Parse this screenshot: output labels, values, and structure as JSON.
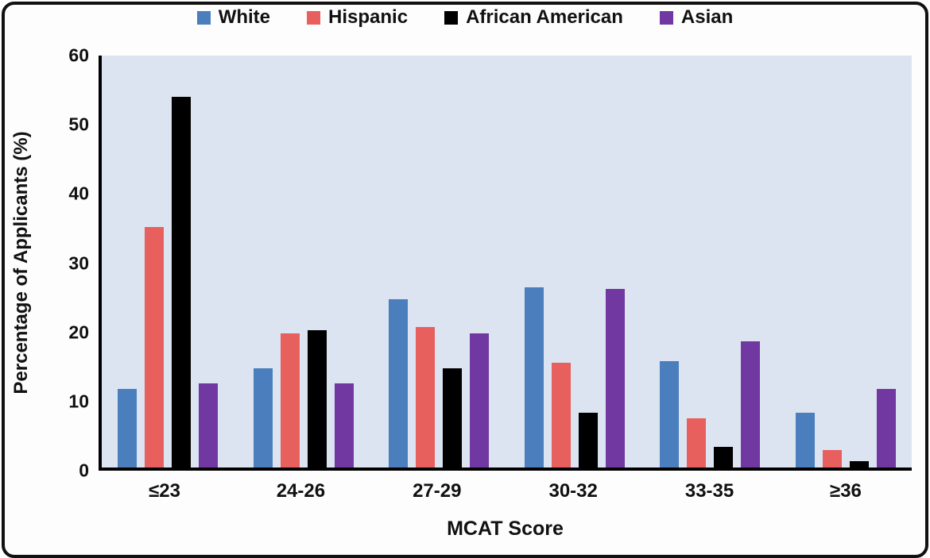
{
  "chart_data": {
    "type": "bar",
    "title": "",
    "xlabel": "MCAT Score",
    "ylabel": "Percentage of Applicants (%)",
    "ylim": [
      0,
      60
    ],
    "yticks": [
      0,
      10,
      20,
      30,
      40,
      50,
      60
    ],
    "categories": [
      "≤23",
      "24-26",
      "27-29",
      "30-32",
      "33-35",
      "≥36"
    ],
    "series": [
      {
        "name": "White",
        "color": "#4a7ebc",
        "values": [
          11.5,
          14.5,
          24.5,
          26.3,
          15.5,
          8.0
        ]
      },
      {
        "name": "Hispanic",
        "color": "#e8605d",
        "values": [
          35.0,
          19.5,
          20.5,
          15.3,
          7.2,
          2.5
        ]
      },
      {
        "name": "African American",
        "color": "#000000",
        "values": [
          54.0,
          20.0,
          14.5,
          8.0,
          3.0,
          0.9
        ]
      },
      {
        "name": "Asian",
        "color": "#7138a2",
        "values": [
          12.3,
          12.3,
          19.5,
          26.0,
          18.4,
          11.5
        ]
      }
    ],
    "legend_position": "top",
    "grid": false,
    "plot_background": "#dce4f1",
    "axis_color": "#000000"
  }
}
